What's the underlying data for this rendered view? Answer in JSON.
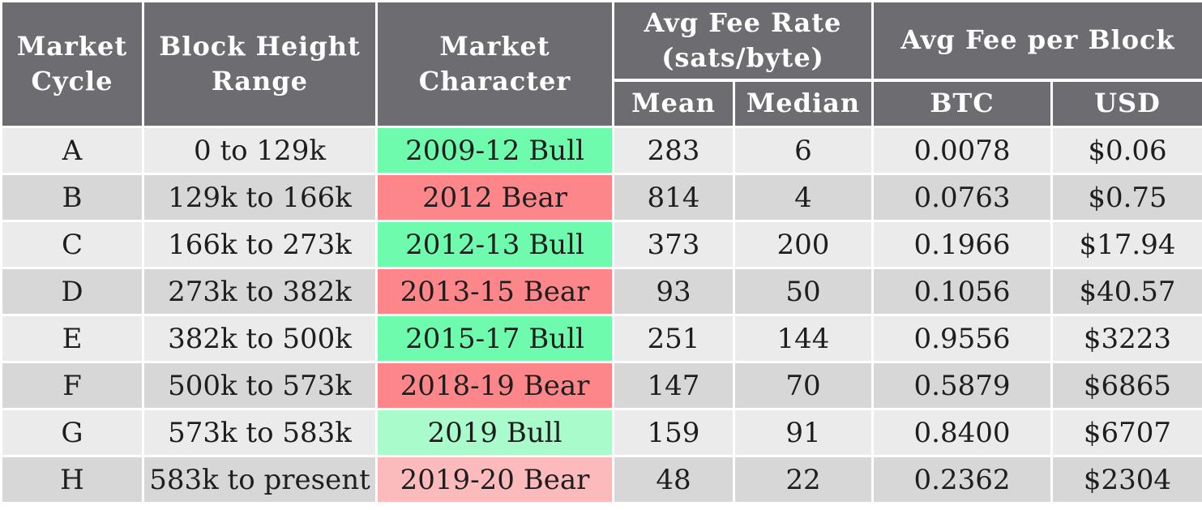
{
  "table": {
    "headers": {
      "market_cycle": "Market Cycle",
      "block_height_range": "Block Height Range",
      "market_character": "Market Character",
      "avg_fee_rate": "Avg Fee Rate (sats/byte)",
      "avg_fee_per_block": "Avg Fee per Block",
      "mean": "Mean",
      "median": "Median",
      "btc": "BTC",
      "usd": "USD"
    },
    "character_colors": {
      "bull_strong": "#6ffbae",
      "bear_strong": "#fc868a",
      "bull_light": "#a9fbcc",
      "bear_light": "#fcbabc"
    },
    "rows": [
      {
        "cycle": "A",
        "range": "0 to 129k",
        "character": "2009-12 Bull",
        "mean": "283",
        "median": "6",
        "btc": "0.0078",
        "usd": "$0.06"
      },
      {
        "cycle": "B",
        "range": "129k to 166k",
        "character": "2012 Bear",
        "mean": "814",
        "median": "4",
        "btc": "0.0763",
        "usd": "$0.75"
      },
      {
        "cycle": "C",
        "range": "166k to 273k",
        "character": "2012-13 Bull",
        "mean": "373",
        "median": "200",
        "btc": "0.1966",
        "usd": "$17.94"
      },
      {
        "cycle": "D",
        "range": "273k to 382k",
        "character": "2013-15 Bear",
        "mean": "93",
        "median": "50",
        "btc": "0.1056",
        "usd": "$40.57"
      },
      {
        "cycle": "E",
        "range": "382k to 500k",
        "character": "2015-17 Bull",
        "mean": "251",
        "median": "144",
        "btc": "0.9556",
        "usd": "$3223"
      },
      {
        "cycle": "F",
        "range": "500k to 573k",
        "character": "2018-19 Bear",
        "mean": "147",
        "median": "70",
        "btc": "0.5879",
        "usd": "$6865"
      },
      {
        "cycle": "G",
        "range": "573k to 583k",
        "character": "2019 Bull",
        "mean": "159",
        "median": "91",
        "btc": "0.8400",
        "usd": "$6707"
      },
      {
        "cycle": "H",
        "range": "583k to present",
        "character": "2019-20 Bear",
        "mean": "48",
        "median": "22",
        "btc": "0.2362",
        "usd": "$2304"
      }
    ]
  }
}
